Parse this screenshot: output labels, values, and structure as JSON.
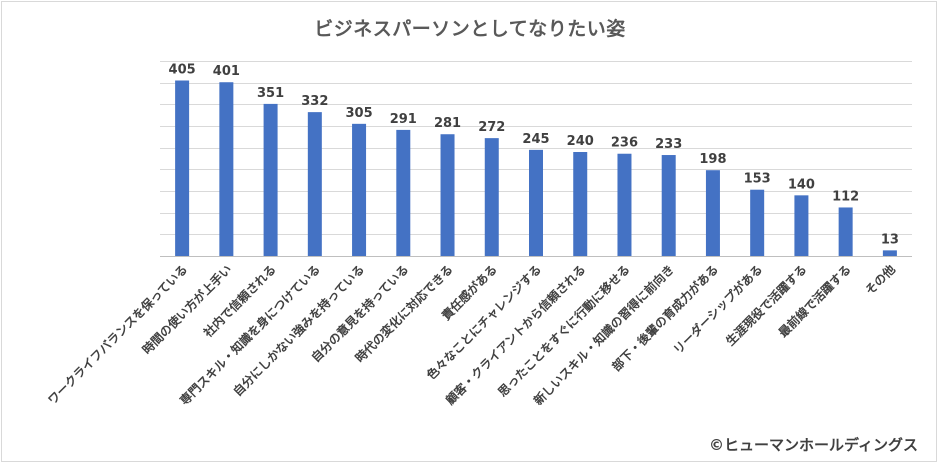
{
  "chart_data": {
    "type": "bar",
    "title": "ビジネスパーソンとしてなりたい姿",
    "categories": [
      "ワークライフバランスを保っている",
      "時間の使い方が上手い",
      "社内で信頼される",
      "専門スキル・知識を身につけている",
      "自分にしかない強みを持っている",
      "自分の意見を持っている",
      "時代の変化に対応できる",
      "責任感がある",
      "色々なことにチャレンジする",
      "顧客・クライアントから信頼される",
      "思ったことをすぐに行動に移せる",
      "新しいスキル・知識の習得に前向き",
      "部下・後輩の育成力がある",
      "リーダーシップがある",
      "生涯現役で活躍する",
      "最前線で活躍する",
      "その他"
    ],
    "values": [
      405,
      401,
      351,
      332,
      305,
      291,
      281,
      272,
      245,
      240,
      236,
      233,
      198,
      153,
      140,
      112,
      13
    ],
    "ylim": [
      0,
      450
    ],
    "grid": true,
    "bar_color": "#4472c4"
  },
  "copyright": "©ヒューマンホールディングス"
}
